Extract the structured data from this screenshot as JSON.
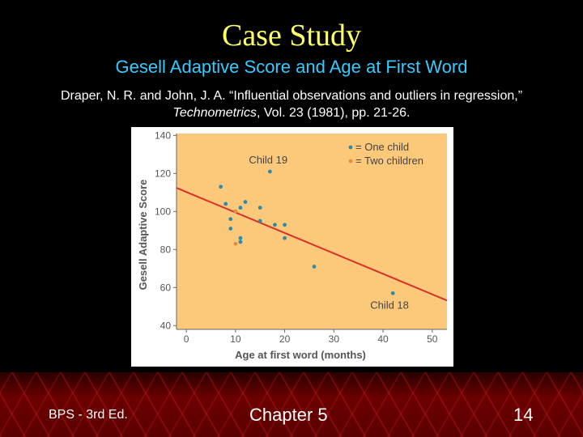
{
  "slide": {
    "title": "Case Study",
    "subtitle": "Gesell Adaptive Score and Age at First Word",
    "citation_part1": "Draper, N. R. and John, J. A. “Influential observations and outliers in regression,” ",
    "citation_journal": "Technometrics",
    "citation_part2": ", Vol. 23 (1981), pp. 21-26."
  },
  "footer": {
    "left": "BPS - 3rd Ed.",
    "middle": "Chapter 5",
    "page": "14"
  },
  "colors": {
    "plot_background": "#fcc97b",
    "one_child": "#2a8ca8",
    "two_children": "#e98b3c",
    "regression_line": "#d9302a"
  },
  "chart_data": {
    "type": "scatter",
    "xlabel": "Age at first word (months)",
    "ylabel": "Gesell Adaptive Score",
    "xlim": [
      -2,
      53
    ],
    "ylim": [
      38,
      141
    ],
    "xticks": [
      0,
      10,
      20,
      30,
      40,
      50
    ],
    "yticks": [
      40,
      60,
      80,
      100,
      120,
      140
    ],
    "grid": false,
    "legend_position": "top-right",
    "legend": [
      {
        "label": "= One child",
        "color": "#2a8ca8"
      },
      {
        "label": "= Two children",
        "color": "#e98b3c"
      }
    ],
    "series": [
      {
        "name": "= One child",
        "points": [
          [
            7,
            113
          ],
          [
            8,
            104
          ],
          [
            9,
            96
          ],
          [
            9,
            91
          ],
          [
            10,
            100
          ],
          [
            11,
            102
          ],
          [
            11,
            86
          ],
          [
            11,
            84
          ],
          [
            12,
            105
          ],
          [
            15,
            102
          ],
          [
            15,
            95
          ],
          [
            17,
            121
          ],
          [
            18,
            93
          ],
          [
            20,
            93
          ],
          [
            20,
            86
          ],
          [
            26,
            71
          ],
          [
            42,
            57
          ]
        ]
      },
      {
        "name": "= Two children",
        "points": [
          [
            10,
            83
          ],
          [
            10,
            100
          ]
        ]
      }
    ],
    "regression_line": {
      "x": [
        -2,
        53
      ],
      "y": [
        112.4,
        53.2
      ]
    },
    "annotations": [
      {
        "text": "Child 19",
        "x": 17,
        "y": 121
      },
      {
        "text": "Child 18",
        "x": 42,
        "y": 57
      }
    ]
  }
}
